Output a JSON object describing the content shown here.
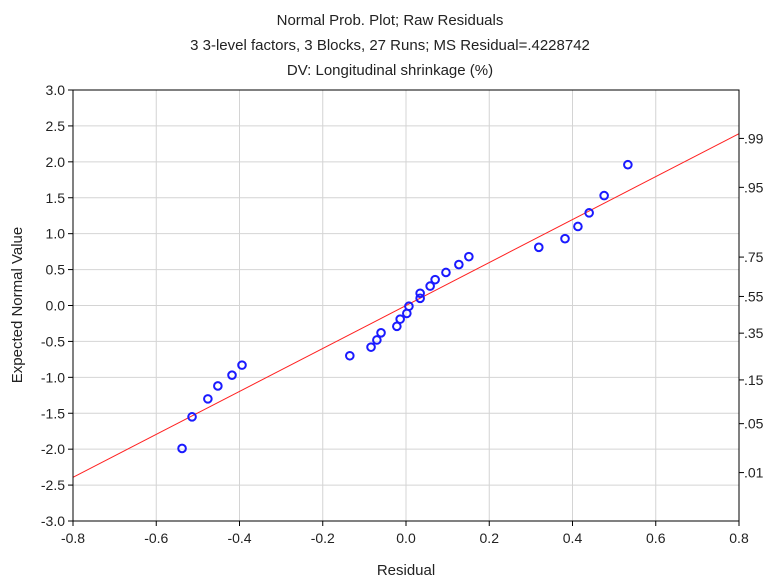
{
  "chart_data": {
    "type": "scatter",
    "title": "Normal Prob. Plot; Raw Residuals",
    "subtitle": "3 3-level factors, 3 Blocks, 27 Runs; MS Residual=.4228742",
    "subtitle2": "DV: Longitudinal shrinkage (%)",
    "xlabel": "Residual",
    "ylabel": "Expected Normal Value",
    "xlim": [
      -0.8,
      0.8
    ],
    "ylim": [
      -3.0,
      3.0
    ],
    "grid": true,
    "x_ticks": [
      "-0.8",
      "-0.6",
      "-0.4",
      "-0.2",
      "0.0",
      "0.2",
      "0.4",
      "0.6",
      "0.8"
    ],
    "y_ticks": [
      "-3.0",
      "-2.5",
      "-2.0",
      "-1.5",
      "-1.0",
      "-0.5",
      "0.0",
      "0.5",
      "1.0",
      "1.5",
      "2.0",
      "2.5",
      "3.0"
    ],
    "right_ticks": [
      {
        "label": ".99",
        "z": 2.326
      },
      {
        "label": ".95",
        "z": 1.645
      },
      {
        "label": ".75",
        "z": 0.674
      },
      {
        "label": ".55",
        "z": 0.126
      },
      {
        "label": ".35",
        "z": -0.385
      },
      {
        "label": ".15",
        "z": -1.036
      },
      {
        "label": ".05",
        "z": -1.645
      },
      {
        "label": ".01",
        "z": -2.326
      }
    ],
    "points": [
      [
        -0.538,
        -1.99
      ],
      [
        -0.514,
        -1.55
      ],
      [
        -0.476,
        -1.3
      ],
      [
        -0.452,
        -1.12
      ],
      [
        -0.418,
        -0.97
      ],
      [
        -0.394,
        -0.83
      ],
      [
        -0.135,
        -0.7
      ],
      [
        -0.084,
        -0.58
      ],
      [
        -0.07,
        -0.48
      ],
      [
        -0.06,
        -0.38
      ],
      [
        -0.022,
        -0.29
      ],
      [
        -0.014,
        -0.19
      ],
      [
        0.002,
        -0.11
      ],
      [
        0.007,
        -0.01
      ],
      [
        0.034,
        0.1
      ],
      [
        0.034,
        0.17
      ],
      [
        0.058,
        0.27
      ],
      [
        0.07,
        0.36
      ],
      [
        0.096,
        0.46
      ],
      [
        0.127,
        0.57
      ],
      [
        0.151,
        0.68
      ],
      [
        0.319,
        0.81
      ],
      [
        0.382,
        0.93
      ],
      [
        0.413,
        1.1
      ],
      [
        0.44,
        1.29
      ],
      [
        0.476,
        1.53
      ],
      [
        0.533,
        1.96
      ]
    ],
    "fit_line": {
      "slope": 2.99,
      "intercept": 0.0
    },
    "colors": {
      "points": "#1a1aff",
      "line": "#ff2020",
      "grid": "#d4d4d4"
    }
  }
}
